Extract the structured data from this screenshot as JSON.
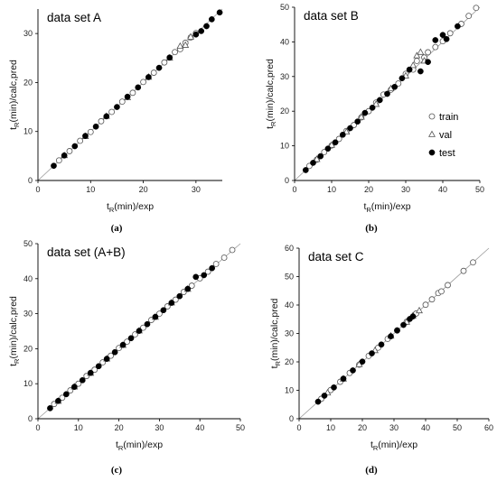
{
  "figure": {
    "panels": [
      {
        "caption": "(a)",
        "x_tick_labels": [
          "0",
          "10",
          "20",
          "30"
        ],
        "y_tick_labels": [
          "0",
          "10",
          "20",
          "30"
        ]
      },
      {
        "caption": "(b)",
        "x_tick_labels": [
          "0",
          "10",
          "20",
          "30",
          "40",
          "50"
        ],
        "y_tick_labels": [
          "0",
          "10",
          "20",
          "30",
          "40",
          "50"
        ]
      },
      {
        "caption": "(c)",
        "x_tick_labels": [
          "0",
          "10",
          "20",
          "30",
          "40",
          "50"
        ],
        "y_tick_labels": [
          "0",
          "10",
          "20",
          "30",
          "40",
          "50"
        ]
      },
      {
        "caption": "(d)",
        "x_tick_labels": [
          "0",
          "10",
          "20",
          "30",
          "40",
          "50",
          "60"
        ],
        "y_tick_labels": [
          "0",
          "10",
          "20",
          "30",
          "40",
          "50",
          "60"
        ]
      }
    ]
  },
  "chart_data": [
    {
      "type": "scatter",
      "title": "data set A",
      "xlabel": {
        "base": "t",
        "sub": "R",
        "rest": "(min)/exp"
      },
      "ylabel": {
        "base": "t",
        "sub": "R",
        "rest": "(min)/calc,pred"
      },
      "xlim": [
        0,
        35
      ],
      "ylim": [
        0,
        35
      ],
      "xticks": [
        0,
        10,
        20,
        30
      ],
      "yticks": [
        0,
        10,
        20,
        30
      ],
      "diagonal": true,
      "series": [
        {
          "name": "train",
          "marker": "open-circle",
          "x": [
            4,
            6,
            8,
            10,
            12,
            14,
            16,
            18,
            20,
            22,
            24,
            26,
            27,
            28,
            29,
            30
          ],
          "y": [
            4.1,
            6.0,
            8.1,
            9.9,
            12.1,
            14.0,
            16.1,
            17.9,
            20.1,
            22.0,
            24.1,
            26.2,
            26.8,
            28.1,
            29.2,
            30.1
          ]
        },
        {
          "name": "val",
          "marker": "open-triangle",
          "x": [
            5,
            9,
            13,
            17,
            21,
            25,
            27,
            28,
            29
          ],
          "y": [
            5.1,
            9.0,
            13.1,
            16.9,
            21.1,
            25.0,
            27.4,
            27.6,
            29.3
          ]
        },
        {
          "name": "test",
          "marker": "filled-circle",
          "x": [
            3,
            5,
            7,
            9,
            11,
            13,
            15,
            17,
            19,
            21,
            23,
            25,
            30,
            31,
            32,
            33,
            34.5
          ],
          "y": [
            3.0,
            5.1,
            7.0,
            9.1,
            11.0,
            13.1,
            15.0,
            17.1,
            19.0,
            21.1,
            23.0,
            25.1,
            29.8,
            30.5,
            31.5,
            32.9,
            34.3
          ]
        }
      ]
    },
    {
      "type": "scatter",
      "title": "data set B",
      "xlabel": {
        "base": "t",
        "sub": "R",
        "rest": "(min)/exp"
      },
      "ylabel": {
        "base": "t",
        "sub": "R",
        "rest": "(min)/calc,pred"
      },
      "xlim": [
        0,
        50
      ],
      "ylim": [
        0,
        50
      ],
      "xticks": [
        0,
        10,
        20,
        30,
        40,
        50
      ],
      "yticks": [
        0,
        10,
        20,
        30,
        40,
        50
      ],
      "diagonal": true,
      "legend": "right",
      "series": [
        {
          "name": "train",
          "marker": "open-circle",
          "x": [
            4,
            6,
            8,
            10,
            12,
            14,
            16,
            18,
            20,
            22,
            24,
            26,
            28,
            30,
            32,
            33,
            35,
            36,
            38,
            40,
            42,
            45,
            47,
            49
          ],
          "y": [
            4.2,
            6.0,
            8.2,
            10.1,
            12.0,
            14.3,
            16.0,
            18.2,
            20.0,
            22.5,
            24.8,
            26.2,
            28.0,
            30.8,
            32.0,
            34.5,
            35.5,
            37.0,
            38.5,
            40.2,
            42.5,
            45.2,
            47.5,
            49.8
          ]
        },
        {
          "name": "val",
          "marker": "open-triangle",
          "x": [
            6,
            10,
            14,
            18,
            22,
            26,
            30,
            32,
            33,
            34,
            35
          ],
          "y": [
            6.1,
            10.2,
            14.0,
            18.3,
            22.0,
            26.5,
            30.2,
            33.2,
            36.0,
            37.0,
            34.5
          ]
        },
        {
          "name": "test",
          "marker": "filled-circle",
          "x": [
            3,
            5,
            7,
            9,
            11,
            13,
            15,
            17,
            19,
            21,
            23,
            25,
            27,
            29,
            31,
            34,
            36,
            38,
            40,
            41,
            44
          ],
          "y": [
            3.0,
            5.1,
            7.0,
            9.2,
            11.0,
            13.2,
            15.1,
            17.0,
            19.5,
            21.0,
            23.2,
            25.0,
            27.0,
            29.5,
            32.0,
            31.5,
            34.2,
            40.5,
            42.0,
            40.8,
            44.5
          ]
        }
      ]
    },
    {
      "type": "scatter",
      "title": "data set (A+B)",
      "xlabel": {
        "base": "t",
        "sub": "R",
        "rest": "(min)/exp"
      },
      "ylabel": {
        "base": "t",
        "sub": "R",
        "rest": "(min)/calc,pred"
      },
      "xlim": [
        0,
        50
      ],
      "ylim": [
        0,
        50
      ],
      "xticks": [
        0,
        10,
        20,
        30,
        40,
        50
      ],
      "yticks": [
        0,
        10,
        20,
        30,
        40,
        50
      ],
      "diagonal": true,
      "series": [
        {
          "name": "train",
          "marker": "open-circle",
          "x": [
            4,
            6,
            8,
            10,
            12,
            14,
            16,
            18,
            20,
            22,
            24,
            26,
            28,
            30,
            32,
            34,
            36,
            38,
            40,
            42,
            44,
            46,
            48
          ],
          "y": [
            4.2,
            6.0,
            8.1,
            10.0,
            12.2,
            14.0,
            16.1,
            18.0,
            20.2,
            22.0,
            24.1,
            26.0,
            28.2,
            30.0,
            32.1,
            34.0,
            36.2,
            38.0,
            40.1,
            42.0,
            44.2,
            46.0,
            48.2
          ]
        },
        {
          "name": "val",
          "marker": "open-triangle",
          "x": [
            5,
            9,
            13,
            17,
            21,
            25,
            29,
            33,
            37
          ],
          "y": [
            5.0,
            9.1,
            13.0,
            17.1,
            21.0,
            25.1,
            29.0,
            33.1,
            37.0
          ]
        },
        {
          "name": "test",
          "marker": "filled-circle",
          "x": [
            3,
            5,
            7,
            9,
            11,
            13,
            15,
            17,
            19,
            21,
            23,
            25,
            27,
            29,
            31,
            33,
            35,
            37,
            39,
            41,
            43
          ],
          "y": [
            3.0,
            5.1,
            7.0,
            9.1,
            11.0,
            13.1,
            15.0,
            17.1,
            19.0,
            21.1,
            23.0,
            25.1,
            27.0,
            29.1,
            31.0,
            33.1,
            35.0,
            37.1,
            40.5,
            41.0,
            43.0
          ]
        }
      ]
    },
    {
      "type": "scatter",
      "title": "data set C",
      "xlabel": {
        "base": "t",
        "sub": "R",
        "rest": "(min)/exp"
      },
      "ylabel": {
        "base": "t",
        "sub": "R",
        "rest": "(min)/calc,pred"
      },
      "xlim": [
        0,
        60
      ],
      "ylim": [
        0,
        60
      ],
      "xticks": [
        0,
        10,
        20,
        30,
        40,
        50,
        60
      ],
      "yticks": [
        0,
        10,
        20,
        30,
        40,
        50,
        60
      ],
      "diagonal": true,
      "series": [
        {
          "name": "train",
          "marker": "open-circle",
          "x": [
            7,
            10,
            13,
            16,
            19,
            22,
            25,
            28,
            31,
            34,
            37,
            40,
            42,
            44,
            45,
            47,
            52,
            55
          ],
          "y": [
            7.0,
            10.1,
            13.0,
            16.1,
            19.0,
            22.1,
            25.0,
            28.1,
            31.0,
            34.1,
            37.0,
            40.1,
            42.0,
            44.2,
            44.8,
            47.0,
            52.0,
            55.0
          ]
        },
        {
          "name": "val",
          "marker": "open-triangle",
          "x": [
            9,
            14,
            19,
            24,
            29,
            34,
            36,
            38
          ],
          "y": [
            9.1,
            14.0,
            19.1,
            24.0,
            29.1,
            34.0,
            36.2,
            38.0
          ]
        },
        {
          "name": "test",
          "marker": "filled-circle",
          "x": [
            6,
            8,
            11,
            14,
            17,
            20,
            23,
            26,
            29,
            31,
            33,
            35,
            36
          ],
          "y": [
            6.0,
            8.1,
            11.0,
            14.1,
            17.0,
            20.1,
            23.0,
            26.1,
            29.0,
            31.1,
            33.0,
            35.1,
            36.0
          ]
        }
      ]
    }
  ]
}
